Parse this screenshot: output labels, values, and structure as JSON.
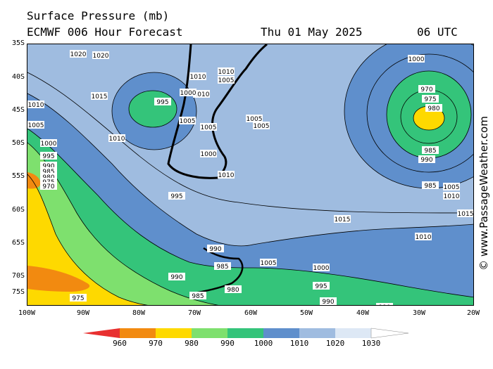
{
  "header": {
    "title": "Surface Pressure (mb)",
    "model": "ECMWF 006 Hour Forecast",
    "date": "Thu 01 May 2025",
    "time": "06 UTC"
  },
  "axes": {
    "lat_labels": [
      "35S",
      "40S",
      "45S",
      "50S",
      "55S",
      "60S",
      "65S",
      "70S",
      "75S"
    ],
    "lon_labels": [
      "100W",
      "90W",
      "80W",
      "70W",
      "60W",
      "50W",
      "40W",
      "30W",
      "20W"
    ]
  },
  "pressure_systems": [
    {
      "type": "low",
      "label": "980",
      "location": "south Atlantic near 28W 45S"
    },
    {
      "type": "low",
      "label": "995",
      "location": "south Pacific near 80W 44S"
    }
  ],
  "isobar_labels": [
    "1020",
    "1020",
    "1015",
    "1010",
    "1010",
    "1005",
    "1000",
    "995",
    "1010",
    "1005",
    "1000",
    "995",
    "990",
    "985",
    "980",
    "975",
    "970",
    "1010",
    "1005",
    "1005",
    "1005",
    "1010",
    "1015",
    "1010",
    "1005",
    "1000",
    "995",
    "990",
    "985",
    "990",
    "985",
    "980",
    "975",
    "970",
    "1000",
    "1005",
    "1010",
    "1015",
    "1010",
    "1005",
    "1000",
    "995",
    "990",
    "985",
    "980",
    "975",
    "990",
    "985",
    "990"
  ],
  "colorbar": {
    "unit": "mb",
    "labels": [
      "960",
      "970",
      "980",
      "990",
      "1000",
      "1010",
      "1020",
      "1030"
    ],
    "colors": [
      "#e83030",
      "#f28a10",
      "#fed900",
      "#7ee06e",
      "#34c47a",
      "#5f8fcc",
      "#9fbce0",
      "#dde8f5",
      "#ffffff"
    ]
  },
  "copyright": "© www.PassageWeather.com"
}
